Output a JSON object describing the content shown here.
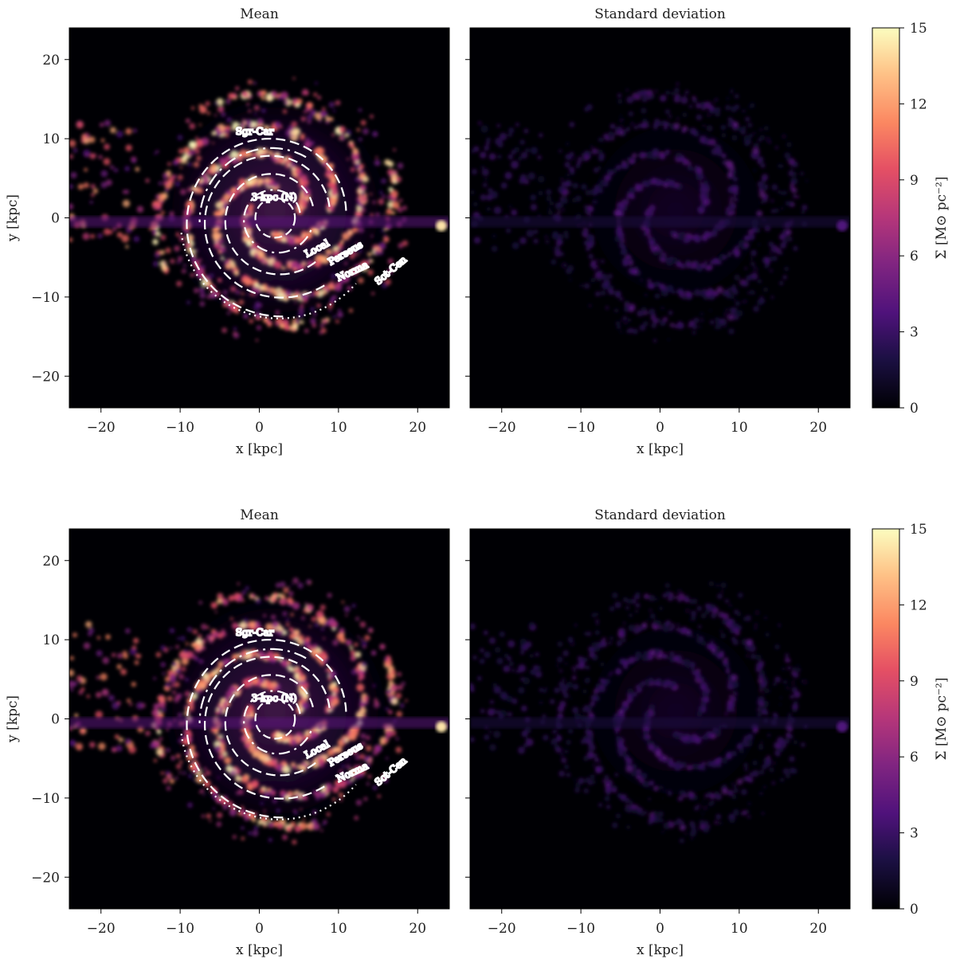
{
  "chart_data": [
    {
      "type": "heatmap",
      "row": 1,
      "panels": [
        {
          "title": "Mean",
          "xlabel": "x [kpc]",
          "ylabel": "y [kpc]",
          "variant": "mean"
        },
        {
          "title": "Standard deviation",
          "xlabel": "x [kpc]",
          "ylabel": "",
          "variant": "std"
        }
      ],
      "xlim": [
        -24,
        24
      ],
      "ylim": [
        -24,
        24
      ],
      "xticks": [
        -20,
        -10,
        0,
        10,
        20
      ],
      "yticks": [
        -20,
        -10,
        0,
        10,
        20
      ],
      "colorbar": {
        "label": "Σ [M⊙ pc⁻²]",
        "range": [
          0,
          15
        ],
        "ticks": [
          0,
          3,
          6,
          9,
          12,
          15
        ],
        "colormap": "magma"
      },
      "arm_labels": [
        "Sgr-Car",
        "3-kpc (N)",
        "Local",
        "Perseus",
        "Norma",
        "Sct-Cen"
      ]
    },
    {
      "type": "heatmap",
      "row": 2,
      "panels": [
        {
          "title": "Mean",
          "xlabel": "x [kpc]",
          "ylabel": "y [kpc]",
          "variant": "mean"
        },
        {
          "title": "Standard deviation",
          "xlabel": "x [kpc]",
          "ylabel": "",
          "variant": "std"
        }
      ],
      "xlim": [
        -24,
        24
      ],
      "ylim": [
        -24,
        24
      ],
      "xticks": [
        -20,
        -10,
        0,
        10,
        20
      ],
      "yticks": [
        -20,
        -10,
        0,
        10,
        20
      ],
      "colorbar": {
        "label": "Σ [M⊙ pc⁻²]",
        "range": [
          0,
          15
        ],
        "ticks": [
          0,
          3,
          6,
          9,
          12,
          15
        ],
        "colormap": "magma"
      },
      "arm_labels": [
        "Sgr-Car",
        "3-kpc (N)",
        "Local",
        "Perseus",
        "Norma",
        "Sct-Cen"
      ]
    }
  ],
  "colors": {
    "background": "#000004",
    "curve": "#ffffff",
    "text": "#222222"
  }
}
